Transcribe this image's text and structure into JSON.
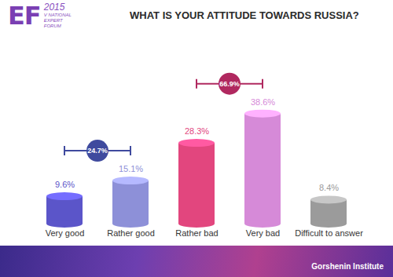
{
  "chart_data": {
    "type": "bar",
    "title": "WHAT IS YOUR ATTITUDE TOWARDS RUSSIA?",
    "categories": [
      "Very good",
      "Rather good",
      "Rather bad",
      "Very bad",
      "Difficult to answer"
    ],
    "values": [
      9.6,
      15.1,
      28.3,
      38.6,
      8.4
    ],
    "value_labels": [
      "9.6%",
      "15.1%",
      "28.3%",
      "38.6%",
      "8.4%"
    ],
    "colors": [
      "#5b55c9",
      "#8d90d8",
      "#e2467e",
      "#d68ad8",
      "#9b9b9b"
    ],
    "data_labels": true,
    "tick_labels": "x",
    "ylim": [
      0,
      55
    ],
    "annotations": [
      {
        "label": "24.7%",
        "value": 24.7,
        "categories": [
          "Very good",
          "Rather good"
        ],
        "color": "#3f4a9e"
      },
      {
        "label": "66.9%",
        "value": 66.9,
        "categories": [
          "Rather bad",
          "Very bad"
        ],
        "color": "#b0285f"
      }
    ],
    "logo": {
      "text": "EF",
      "year": "2015",
      "subtitle": [
        "V NATIONAL",
        "EXPERT",
        "FORUM"
      ]
    },
    "source": "Gorshenin Institute"
  }
}
